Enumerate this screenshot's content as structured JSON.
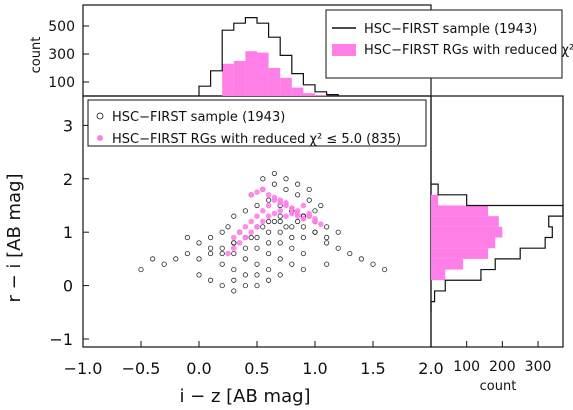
{
  "colors": {
    "full_sample": "#111111",
    "rg_sample": "#ff7ee8",
    "axis": "#111111",
    "background": "#ffffff"
  },
  "chart_data": [
    {
      "type": "scatter",
      "xlabel": "i − z [AB mag]",
      "ylabel": "r − i [AB mag]",
      "xlim": [
        -1.0,
        2.0
      ],
      "ylim": [
        -1.15,
        3.55
      ],
      "x_ticks": [
        -1.0,
        -0.5,
        0.0,
        0.5,
        1.0,
        1.5,
        2.0
      ],
      "x_tick_labels": [
        "−1.0",
        "−0.5",
        "0.0",
        "0.5",
        "1.0",
        "1.5",
        "2.0"
      ],
      "y_ticks": [
        -1,
        0,
        1,
        2,
        3
      ],
      "y_tick_labels": [
        "−1",
        "0",
        "1",
        "2",
        "3"
      ],
      "legend_placement": "top-left",
      "legend": [
        {
          "label": "HSC−FIRST sample (1943)",
          "marker": "open-circle",
          "color": "#111111"
        },
        {
          "label": "HSC−FIRST RGs with reduced χ² ≤ 5.0 (835)",
          "marker": "filled-circle",
          "color": "#ff7ee8"
        }
      ],
      "series": [
        {
          "name": "HSC−FIRST sample (1943)",
          "marker": "open-circle",
          "x": [
            -0.2,
            -0.1,
            0.0,
            0.1,
            0.2,
            0.3,
            0.4,
            0.5,
            0.6,
            0.7,
            0.8,
            0.9,
            1.0,
            1.1,
            0.1,
            0.2,
            0.3,
            0.4,
            0.5,
            0.6,
            0.7,
            0.8,
            0.9,
            1.0,
            0.2,
            0.3,
            0.4,
            0.5,
            0.6,
            0.7,
            0.8,
            0.9,
            0.3,
            0.4,
            0.5,
            0.6,
            0.7,
            0.8,
            0.9,
            1.0,
            0.45,
            0.55,
            0.65,
            0.75,
            0.85,
            0.95,
            1.05,
            0.55,
            0.65,
            0.75,
            0.85,
            0.95,
            0.6,
            0.7,
            0.8,
            0.9,
            1.0,
            1.1,
            1.2,
            0.0,
            0.1,
            0.2,
            0.3,
            0.4,
            0.5,
            0.6,
            -0.1,
            0.0,
            0.1,
            0.2,
            0.3,
            0.4,
            0.5,
            0.6,
            0.7,
            0.8,
            0.9,
            1.0,
            1.1,
            1.2,
            1.3,
            1.4,
            -0.3,
            -0.4,
            -0.5,
            1.5,
            1.6,
            0.25,
            0.35,
            0.45,
            0.55,
            0.65,
            0.75,
            0.85,
            0.95,
            0.3,
            0.5,
            0.7,
            0.9,
            1.1
          ],
          "y": [
            0.5,
            0.6,
            0.5,
            0.6,
            0.7,
            0.6,
            0.5,
            0.7,
            0.6,
            0.8,
            0.7,
            0.9,
            1.0,
            0.9,
            0.9,
            1.0,
            0.8,
            0.9,
            1.1,
            1.0,
            1.2,
            1.1,
            1.3,
            1.2,
            0.4,
            0.3,
            0.2,
            0.4,
            0.3,
            0.5,
            0.4,
            0.6,
            1.3,
            1.4,
            1.5,
            1.6,
            1.5,
            1.4,
            1.3,
            1.4,
            1.7,
            1.8,
            1.9,
            1.8,
            1.7,
            1.6,
            1.5,
            2.0,
            2.1,
            2.0,
            1.9,
            1.8,
            1.2,
            1.3,
            1.4,
            1.3,
            1.2,
            1.1,
            1.0,
            0.2,
            0.1,
            0.0,
            0.1,
            0.0,
            0.2,
            0.1,
            0.9,
            0.8,
            0.7,
            0.6,
            0.8,
            0.7,
            0.9,
            0.8,
            1.0,
            0.9,
            1.1,
            1.0,
            0.8,
            0.7,
            0.6,
            0.5,
            0.4,
            0.5,
            0.3,
            0.4,
            0.3,
            1.1,
            1.0,
            0.9,
            1.1,
            1.2,
            1.1,
            1.2,
            1.3,
            -0.1,
            0.0,
            0.2,
            0.3,
            0.4
          ]
        },
        {
          "name": "HSC−FIRST RGs with reduced χ² ≤ 5.0 (835)",
          "marker": "filled-circle",
          "x": [
            0.25,
            0.3,
            0.35,
            0.4,
            0.45,
            0.5,
            0.55,
            0.6,
            0.65,
            0.7,
            0.75,
            0.8,
            0.85,
            0.9,
            0.95,
            1.0,
            0.3,
            0.35,
            0.4,
            0.45,
            0.5,
            0.55,
            0.6,
            0.65,
            0.7,
            0.75,
            0.8,
            0.85,
            0.9,
            0.95,
            1.0,
            1.05,
            0.45,
            0.5,
            0.55,
            0.6,
            0.65,
            0.7,
            0.75,
            0.8,
            0.85,
            0.9
          ],
          "y": [
            0.6,
            0.7,
            0.8,
            0.9,
            1.0,
            1.1,
            1.2,
            1.3,
            1.35,
            1.4,
            1.3,
            1.35,
            1.3,
            1.25,
            1.3,
            1.2,
            0.9,
            1.0,
            1.1,
            1.2,
            1.3,
            1.4,
            1.5,
            1.6,
            1.55,
            1.5,
            1.45,
            1.4,
            1.5,
            1.35,
            1.25,
            1.15,
            1.7,
            1.75,
            1.8,
            1.7,
            1.65,
            1.6,
            1.55,
            1.45,
            1.35,
            1.25
          ]
        }
      ]
    },
    {
      "type": "bar",
      "panel": "top-histogram",
      "xlim": [
        -1.0,
        2.0
      ],
      "ylabel": "count",
      "ylim": [
        0,
        650
      ],
      "y_ticks": [
        100,
        300,
        500
      ],
      "y_tick_labels": [
        "100",
        "300",
        "500"
      ],
      "legend_placement": "top-right",
      "legend": [
        {
          "label": "HSC−FIRST sample (1943)",
          "type": "step",
          "color": "#111111"
        },
        {
          "label": "HSC−FIRST RGs with reduced χ² ≤ 5.0 (835)",
          "type": "filled",
          "color": "#ff7ee8"
        }
      ],
      "x_bin_edges": [
        0.0,
        0.1,
        0.2,
        0.3,
        0.4,
        0.5,
        0.6,
        0.7,
        0.8,
        0.9,
        1.0,
        1.1,
        1.2
      ],
      "series": [
        {
          "name": "HSC−FIRST sample (1943)",
          "values": [
            70,
            180,
            470,
            520,
            560,
            520,
            420,
            290,
            160,
            80,
            30,
            10
          ]
        },
        {
          "name": "HSC−FIRST RGs with reduced χ² ≤ 5.0 (835)",
          "values": [
            0,
            0,
            230,
            250,
            320,
            310,
            200,
            130,
            60,
            20,
            5,
            0
          ]
        }
      ]
    },
    {
      "type": "bar",
      "panel": "right-histogram",
      "orientation": "horizontal",
      "xlabel": "count",
      "xlim": [
        0,
        370
      ],
      "ylim": [
        -1.15,
        3.55
      ],
      "x_ticks": [
        100,
        200,
        300
      ],
      "x_tick_labels": [
        "100",
        "200",
        "300"
      ],
      "y_bin_edges": [
        -0.5,
        -0.3,
        -0.1,
        0.1,
        0.3,
        0.5,
        0.7,
        0.9,
        1.1,
        1.3,
        1.5,
        1.7,
        1.9
      ],
      "series": [
        {
          "name": "HSC−FIRST sample (1943)",
          "values": [
            0,
            10,
            40,
            140,
            180,
            250,
            320,
            340,
            330,
            370,
            100,
            20
          ]
        },
        {
          "name": "HSC−FIRST RGs with reduced χ² ≤ 5.0 (835)",
          "values": [
            0,
            0,
            0,
            40,
            90,
            160,
            180,
            200,
            190,
            160,
            20,
            0
          ]
        }
      ]
    }
  ]
}
